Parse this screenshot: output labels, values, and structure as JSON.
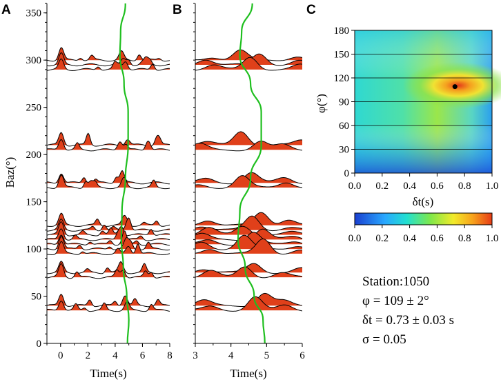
{
  "chart_data": [
    {
      "panel": "A",
      "type": "line",
      "xlabel": "Time(s)",
      "ylabel": "Baz(°)",
      "xlim": [
        -1,
        8
      ],
      "ylim": [
        0,
        360
      ],
      "x_ticks": [
        "0",
        "2",
        "4",
        "6",
        "8"
      ],
      "y_ticks": [
        "0",
        "50",
        "100",
        "150",
        "200",
        "250",
        "300",
        "350"
      ],
      "trace_baselines": [
        300,
        295,
        290,
        210,
        205,
        170,
        165,
        125,
        120,
        115,
        110,
        105,
        100,
        95,
        75,
        70,
        40,
        35
      ],
      "fast_direction_curve": [
        [
          4.9,
          0
        ],
        [
          5.0,
          25
        ],
        [
          4.85,
          50
        ],
        [
          4.6,
          80
        ],
        [
          4.45,
          110
        ],
        [
          4.5,
          140
        ],
        [
          4.75,
          175
        ],
        [
          4.95,
          210
        ],
        [
          4.95,
          245
        ],
        [
          4.65,
          275
        ],
        [
          4.35,
          305
        ],
        [
          4.4,
          330
        ],
        [
          4.75,
          360
        ]
      ]
    },
    {
      "panel": "B",
      "type": "line",
      "xlabel": "Time(s)",
      "xlim": [
        3,
        6
      ],
      "ylim": [
        0,
        360
      ],
      "x_ticks": [
        "3",
        "4",
        "5",
        "6"
      ],
      "trace_baselines": [
        300,
        295,
        290,
        210,
        205,
        170,
        165,
        125,
        120,
        115,
        110,
        105,
        100,
        95,
        75,
        70,
        40,
        35
      ],
      "fast_direction_curve": [
        [
          4.95,
          0
        ],
        [
          4.9,
          25
        ],
        [
          4.65,
          50
        ],
        [
          4.4,
          80
        ],
        [
          4.2,
          110
        ],
        [
          4.25,
          140
        ],
        [
          4.55,
          175
        ],
        [
          4.85,
          210
        ],
        [
          4.85,
          245
        ],
        [
          4.55,
          275
        ],
        [
          4.25,
          305
        ],
        [
          4.3,
          330
        ],
        [
          4.6,
          360
        ]
      ]
    },
    {
      "panel": "C",
      "type": "heatmap",
      "xlabel": "δt(s)",
      "ylabel": "φ(°)",
      "xlim": [
        0,
        1
      ],
      "ylim": [
        0,
        180
      ],
      "x_ticks": [
        "0.0",
        "0.2",
        "0.4",
        "0.6",
        "0.8",
        "1.0"
      ],
      "y_ticks": [
        "0",
        "30",
        "60",
        "90",
        "120",
        "150",
        "180"
      ],
      "best_fit": {
        "dt": 0.73,
        "phi": 109
      },
      "colorbar_ticks": [
        "0.0",
        "0.2",
        "0.4",
        "0.6",
        "0.8",
        "1.0"
      ],
      "colorbar_range": [
        0,
        1
      ]
    }
  ],
  "panels": {
    "a": "A",
    "b": "B",
    "c": "C"
  },
  "stats": {
    "station": "Station:1050",
    "phi": "φ = 109 ± 2°",
    "dt": "δt = 0.73 ± 0.03 s",
    "sigma": "σ = 0.05"
  },
  "colors": {
    "fill": "#e0401a",
    "curve": "#1fbf1f",
    "trace": "#000000",
    "point": "#000000"
  }
}
